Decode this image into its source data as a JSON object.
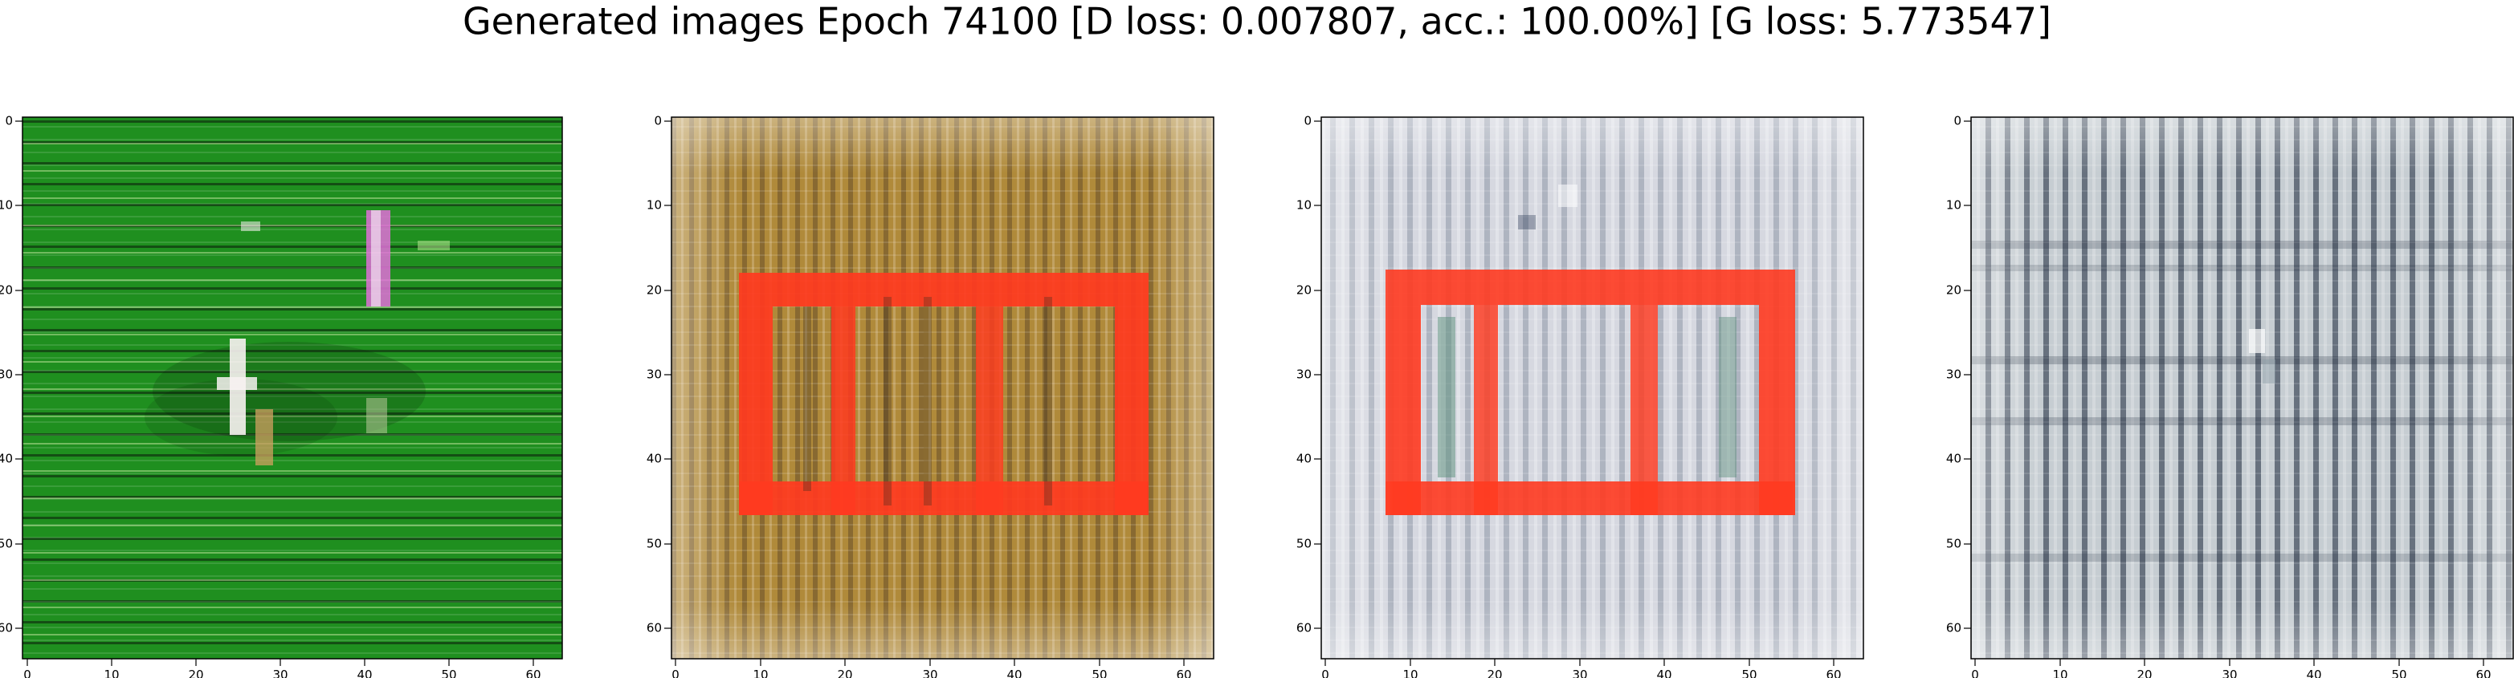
{
  "figure": {
    "title": "Generated images Epoch 74100 [D loss: 0.007807, acc.: 100.00%] [G loss: 5.773547]"
  },
  "panels": [
    {
      "name": "generated-image-1",
      "dominant_colors": [
        "#1f8f1f",
        "#2fa32f",
        "#0e5e10",
        "#b7e38f",
        "#0b1a0b",
        "#e070d8"
      ],
      "x_ticks": [
        "0",
        "10",
        "20",
        "30",
        "40",
        "50",
        "60"
      ],
      "y_ticks": [
        "0",
        "10",
        "20",
        "30",
        "40",
        "50",
        "60"
      ]
    },
    {
      "name": "generated-image-2",
      "dominant_colors": [
        "#b08a3a",
        "#d4b06a",
        "#7a6a2a",
        "#ff3a20",
        "#f2e8d8",
        "#3c2a20"
      ],
      "x_ticks": [
        "0",
        "10",
        "20",
        "30",
        "40",
        "50",
        "60"
      ],
      "y_ticks": [
        "0",
        "10",
        "20",
        "30",
        "40",
        "50",
        "60"
      ]
    },
    {
      "name": "generated-image-3",
      "dominant_colors": [
        "#d6d8e0",
        "#f2eef2",
        "#ff3a20",
        "#5a8f7a",
        "#22324c",
        "#b8c2cc"
      ],
      "x_ticks": [
        "0",
        "10",
        "20",
        "30",
        "40",
        "50",
        "60"
      ],
      "y_ticks": [
        "0",
        "10",
        "20",
        "30",
        "40",
        "50",
        "60"
      ]
    },
    {
      "name": "generated-image-4",
      "dominant_colors": [
        "#c6cdd2",
        "#eef0f2",
        "#1a2638",
        "#8ea0a8",
        "#51606a",
        "#f7f7ff"
      ],
      "x_ticks": [
        "0",
        "10",
        "20",
        "30",
        "40",
        "50",
        "60"
      ],
      "y_ticks": [
        "0",
        "10",
        "20",
        "30",
        "40",
        "50",
        "60"
      ]
    }
  ]
}
